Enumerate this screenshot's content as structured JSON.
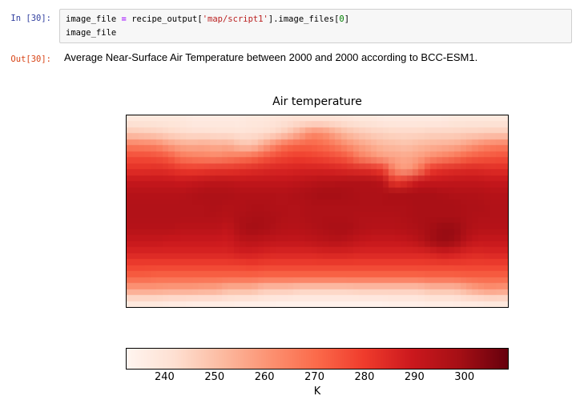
{
  "notebook": {
    "input_prompt": "In [30]:",
    "output_prompt": "Out[30]:",
    "prompt_colors": {
      "in": "#303F9F",
      "out": "#D84315"
    },
    "cell_bg": "#f7f7f7",
    "cell_border": "#cfcfcf",
    "code_lines": [
      [
        {
          "t": "image_file ",
          "c": "p"
        },
        {
          "t": "=",
          "c": "o"
        },
        {
          "t": " recipe_output[",
          "c": "p"
        },
        {
          "t": "'map/script1'",
          "c": "s"
        },
        {
          "t": "].image_files[",
          "c": "p"
        },
        {
          "t": "0",
          "c": "n"
        },
        {
          "t": "]",
          "c": "p"
        }
      ],
      [
        {
          "t": "image_file",
          "c": "p"
        }
      ]
    ],
    "output_text": "Average Near-Surface Air Temperature between 2000 and 2000 according to BCC-ESM1."
  },
  "syntax_colors": {
    "plain": "#000000",
    "operator": "#AA22FF",
    "string": "#BA2121",
    "number": "#008000"
  },
  "chart_data": {
    "type": "heatmap",
    "title": "Air temperature",
    "units": "K",
    "projection": "equirectangular world map, lat 90N to 90S (rows), lon 180W to 180E (cols)",
    "colormap": "Reds",
    "colormap_stops": [
      "#fff5f0",
      "#fee0d2",
      "#fcbba1",
      "#fc9272",
      "#fb6a4a",
      "#ef3b2c",
      "#cb181d",
      "#a50f15",
      "#67000d"
    ],
    "colorbar": {
      "orientation": "horizontal",
      "label": "K",
      "ticks": [
        240,
        250,
        260,
        270,
        280,
        290,
        300
      ],
      "vmin": 232.4,
      "vmax": 308.7
    },
    "rows": 16,
    "cols": 32,
    "values": [
      [
        238,
        238,
        238,
        238,
        238,
        237,
        237,
        237,
        237,
        237,
        238,
        238,
        239,
        240,
        241,
        241,
        241,
        240,
        239,
        238,
        238,
        237,
        237,
        237,
        237,
        237,
        237,
        238,
        238,
        238,
        238,
        238
      ],
      [
        248,
        247,
        246,
        244,
        243,
        242,
        242,
        241,
        241,
        240,
        241,
        242,
        244,
        248,
        255,
        263,
        262,
        256,
        251,
        248,
        246,
        245,
        244,
        244,
        244,
        245,
        245,
        245,
        246,
        246,
        247,
        247
      ],
      [
        266,
        265,
        264,
        259,
        256,
        255,
        256,
        254,
        255,
        250,
        249,
        256,
        264,
        270,
        272,
        272,
        270,
        267,
        262,
        258,
        255,
        252,
        251,
        250,
        252,
        253,
        254,
        255,
        258,
        262,
        265,
        266
      ],
      [
        277,
        277,
        276,
        274,
        268,
        266,
        265,
        264,
        266,
        268,
        270,
        274,
        277,
        279,
        280,
        279,
        278,
        276,
        274,
        266,
        262,
        258,
        257,
        256,
        258,
        262,
        265,
        268,
        272,
        274,
        275,
        276
      ],
      [
        283,
        283,
        284,
        283,
        281,
        280,
        281,
        282,
        282,
        283,
        284,
        285,
        286,
        286,
        287,
        287,
        287,
        286,
        285,
        284,
        283,
        280,
        262,
        258,
        266,
        280,
        283,
        284,
        285,
        285,
        284,
        284
      ],
      [
        291,
        291,
        291,
        291,
        290,
        291,
        292,
        293,
        293,
        292,
        292,
        292,
        292,
        292,
        293,
        294,
        295,
        295,
        296,
        296,
        296,
        294,
        280,
        284,
        290,
        291,
        291,
        292,
        292,
        292,
        291,
        291
      ],
      [
        295,
        295,
        295,
        295,
        295,
        296,
        297,
        297,
        297,
        296,
        296,
        296,
        296,
        296,
        297,
        298,
        299,
        299,
        298,
        297,
        297,
        297,
        298,
        298,
        298,
        298,
        297,
        296,
        296,
        296,
        295,
        295
      ],
      [
        296,
        296,
        296,
        296,
        296,
        296,
        296,
        297,
        296,
        296,
        297,
        297,
        296,
        296,
        296,
        297,
        297,
        297,
        297,
        297,
        297,
        297,
        297,
        297,
        298,
        298,
        298,
        298,
        297,
        297,
        296,
        296
      ],
      [
        296,
        296,
        296,
        296,
        296,
        296,
        296,
        296,
        295,
        297,
        298,
        298,
        297,
        296,
        296,
        297,
        297,
        297,
        297,
        296,
        296,
        296,
        296,
        297,
        298,
        298,
        298,
        298,
        297,
        296,
        296,
        296
      ],
      [
        295,
        295,
        295,
        295,
        294,
        294,
        294,
        294,
        292,
        297,
        299,
        298,
        296,
        295,
        295,
        296,
        297,
        298,
        298,
        296,
        295,
        295,
        295,
        296,
        297,
        299,
        301,
        301,
        297,
        295,
        295,
        295
      ],
      [
        291,
        291,
        291,
        290,
        290,
        290,
        290,
        290,
        289,
        293,
        294,
        293,
        292,
        292,
        292,
        293,
        294,
        295,
        294,
        292,
        291,
        291,
        291,
        292,
        294,
        299,
        301,
        300,
        294,
        291,
        291,
        291
      ],
      [
        286,
        286,
        286,
        286,
        286,
        286,
        286,
        286,
        286,
        288,
        288,
        287,
        286,
        286,
        286,
        286,
        287,
        287,
        287,
        286,
        286,
        286,
        286,
        286,
        286,
        287,
        289,
        288,
        286,
        285,
        286,
        286
      ],
      [
        279,
        279,
        279,
        279,
        279,
        279,
        279,
        279,
        279,
        279,
        280,
        279,
        279,
        279,
        279,
        279,
        279,
        279,
        279,
        279,
        279,
        279,
        279,
        279,
        279,
        279,
        279,
        279,
        279,
        279,
        279,
        279
      ],
      [
        272,
        272,
        271,
        271,
        271,
        271,
        271,
        271,
        271,
        271,
        271,
        270,
        270,
        270,
        270,
        270,
        270,
        270,
        270,
        270,
        270,
        270,
        270,
        270,
        270,
        271,
        271,
        271,
        272,
        272,
        272,
        272
      ],
      [
        258,
        258,
        258,
        257,
        257,
        257,
        256,
        256,
        252,
        252,
        252,
        248,
        248,
        248,
        246,
        246,
        246,
        246,
        246,
        247,
        247,
        247,
        247,
        247,
        247,
        250,
        250,
        250,
        254,
        258,
        260,
        259
      ],
      [
        238,
        238,
        238,
        237,
        237,
        236,
        236,
        236,
        236,
        235,
        235,
        235,
        234,
        234,
        234,
        234,
        234,
        234,
        234,
        234,
        234,
        234,
        235,
        235,
        235,
        236,
        236,
        236,
        237,
        237,
        238,
        238
      ]
    ]
  }
}
